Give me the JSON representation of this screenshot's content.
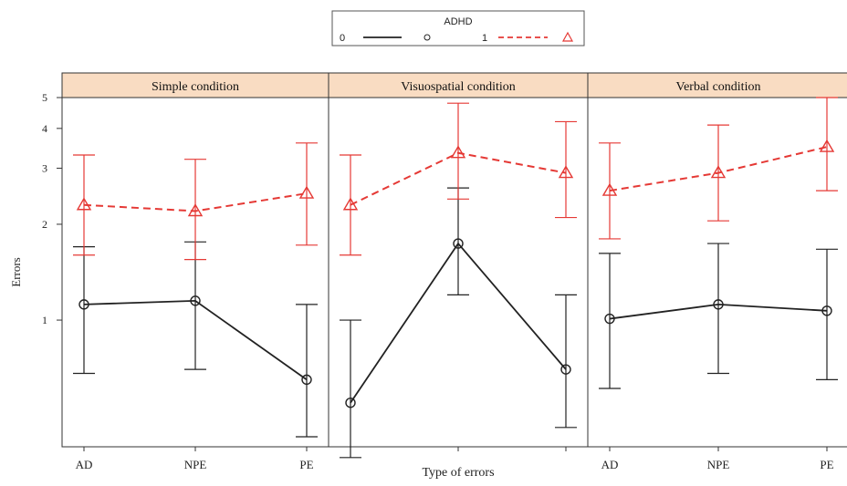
{
  "chart_data": {
    "type": "line",
    "y_scale": "log",
    "ylim": [
      0.4,
      5
    ],
    "y_ticks": [
      "1",
      "2",
      "3",
      "4",
      "5"
    ],
    "ylabel": "Errors",
    "xlabel": "Type of errors",
    "categories": [
      "AD",
      "NPE",
      "PE"
    ],
    "legend": {
      "title": "ADHD",
      "position": "top-center",
      "entries": [
        {
          "label": "0",
          "color": "#222222",
          "line": "solid",
          "marker": "circle"
        },
        {
          "label": "1",
          "color": "#e53935",
          "line": "dashed",
          "marker": "triangle"
        }
      ]
    },
    "colors": {
      "strip": "#f9dcc2",
      "adhd0": "#222222",
      "adhd1": "#e53935"
    },
    "panels": [
      {
        "title": "Simple condition",
        "series": [
          {
            "name": "0",
            "values": [
              1.12,
              1.15,
              0.65
            ],
            "lower": [
              0.68,
              0.7,
              0.43
            ],
            "upper": [
              1.7,
              1.76,
              1.12
            ]
          },
          {
            "name": "1",
            "values": [
              2.3,
              2.2,
              2.5
            ],
            "lower": [
              1.6,
              1.55,
              1.72
            ],
            "upper": [
              3.3,
              3.2,
              3.6
            ]
          }
        ]
      },
      {
        "title": "Visuospatial condition",
        "series": [
          {
            "name": "0",
            "values": [
              0.55,
              1.74,
              0.7
            ],
            "lower": [
              0.37,
              1.2,
              0.46
            ],
            "upper": [
              1.0,
              2.6,
              1.2
            ]
          },
          {
            "name": "1",
            "values": [
              2.3,
              3.35,
              2.9
            ],
            "lower": [
              1.6,
              2.4,
              2.1
            ],
            "upper": [
              3.3,
              4.8,
              4.2
            ]
          }
        ]
      },
      {
        "title": "Verbal condition",
        "series": [
          {
            "name": "0",
            "values": [
              1.01,
              1.12,
              1.07
            ],
            "lower": [
              0.61,
              0.68,
              0.65
            ],
            "upper": [
              1.62,
              1.74,
              1.67
            ]
          },
          {
            "name": "1",
            "values": [
              2.55,
              2.9,
              3.5
            ],
            "lower": [
              1.8,
              2.05,
              2.55
            ],
            "upper": [
              3.6,
              4.1,
              5.0
            ]
          }
        ]
      }
    ]
  }
}
